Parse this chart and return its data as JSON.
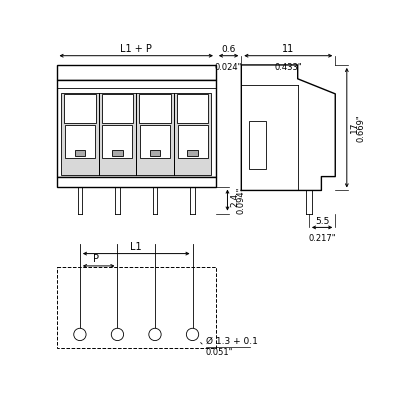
{
  "line_color": "#000000",
  "font_size_label": 7,
  "font_size_dim": 6.5,
  "font_size_small": 6,
  "annotations": {
    "L1_P": "L1 + P",
    "dim_06": "0.6",
    "dim_06_inch": "0.024\"",
    "dim_11": "11",
    "dim_11_inch": "0.433\"",
    "dim_24": "2.4",
    "dim_24_inch": "0.094\"",
    "dim_17": "17",
    "dim_17_inch": "0.669\"",
    "dim_55": "5.5",
    "dim_55_inch": "0.217\"",
    "dim_L1": "L1",
    "dim_P": "P",
    "dim_hole": "Ø 1.3 + 0.1",
    "dim_hole_inch": "0.051\""
  }
}
